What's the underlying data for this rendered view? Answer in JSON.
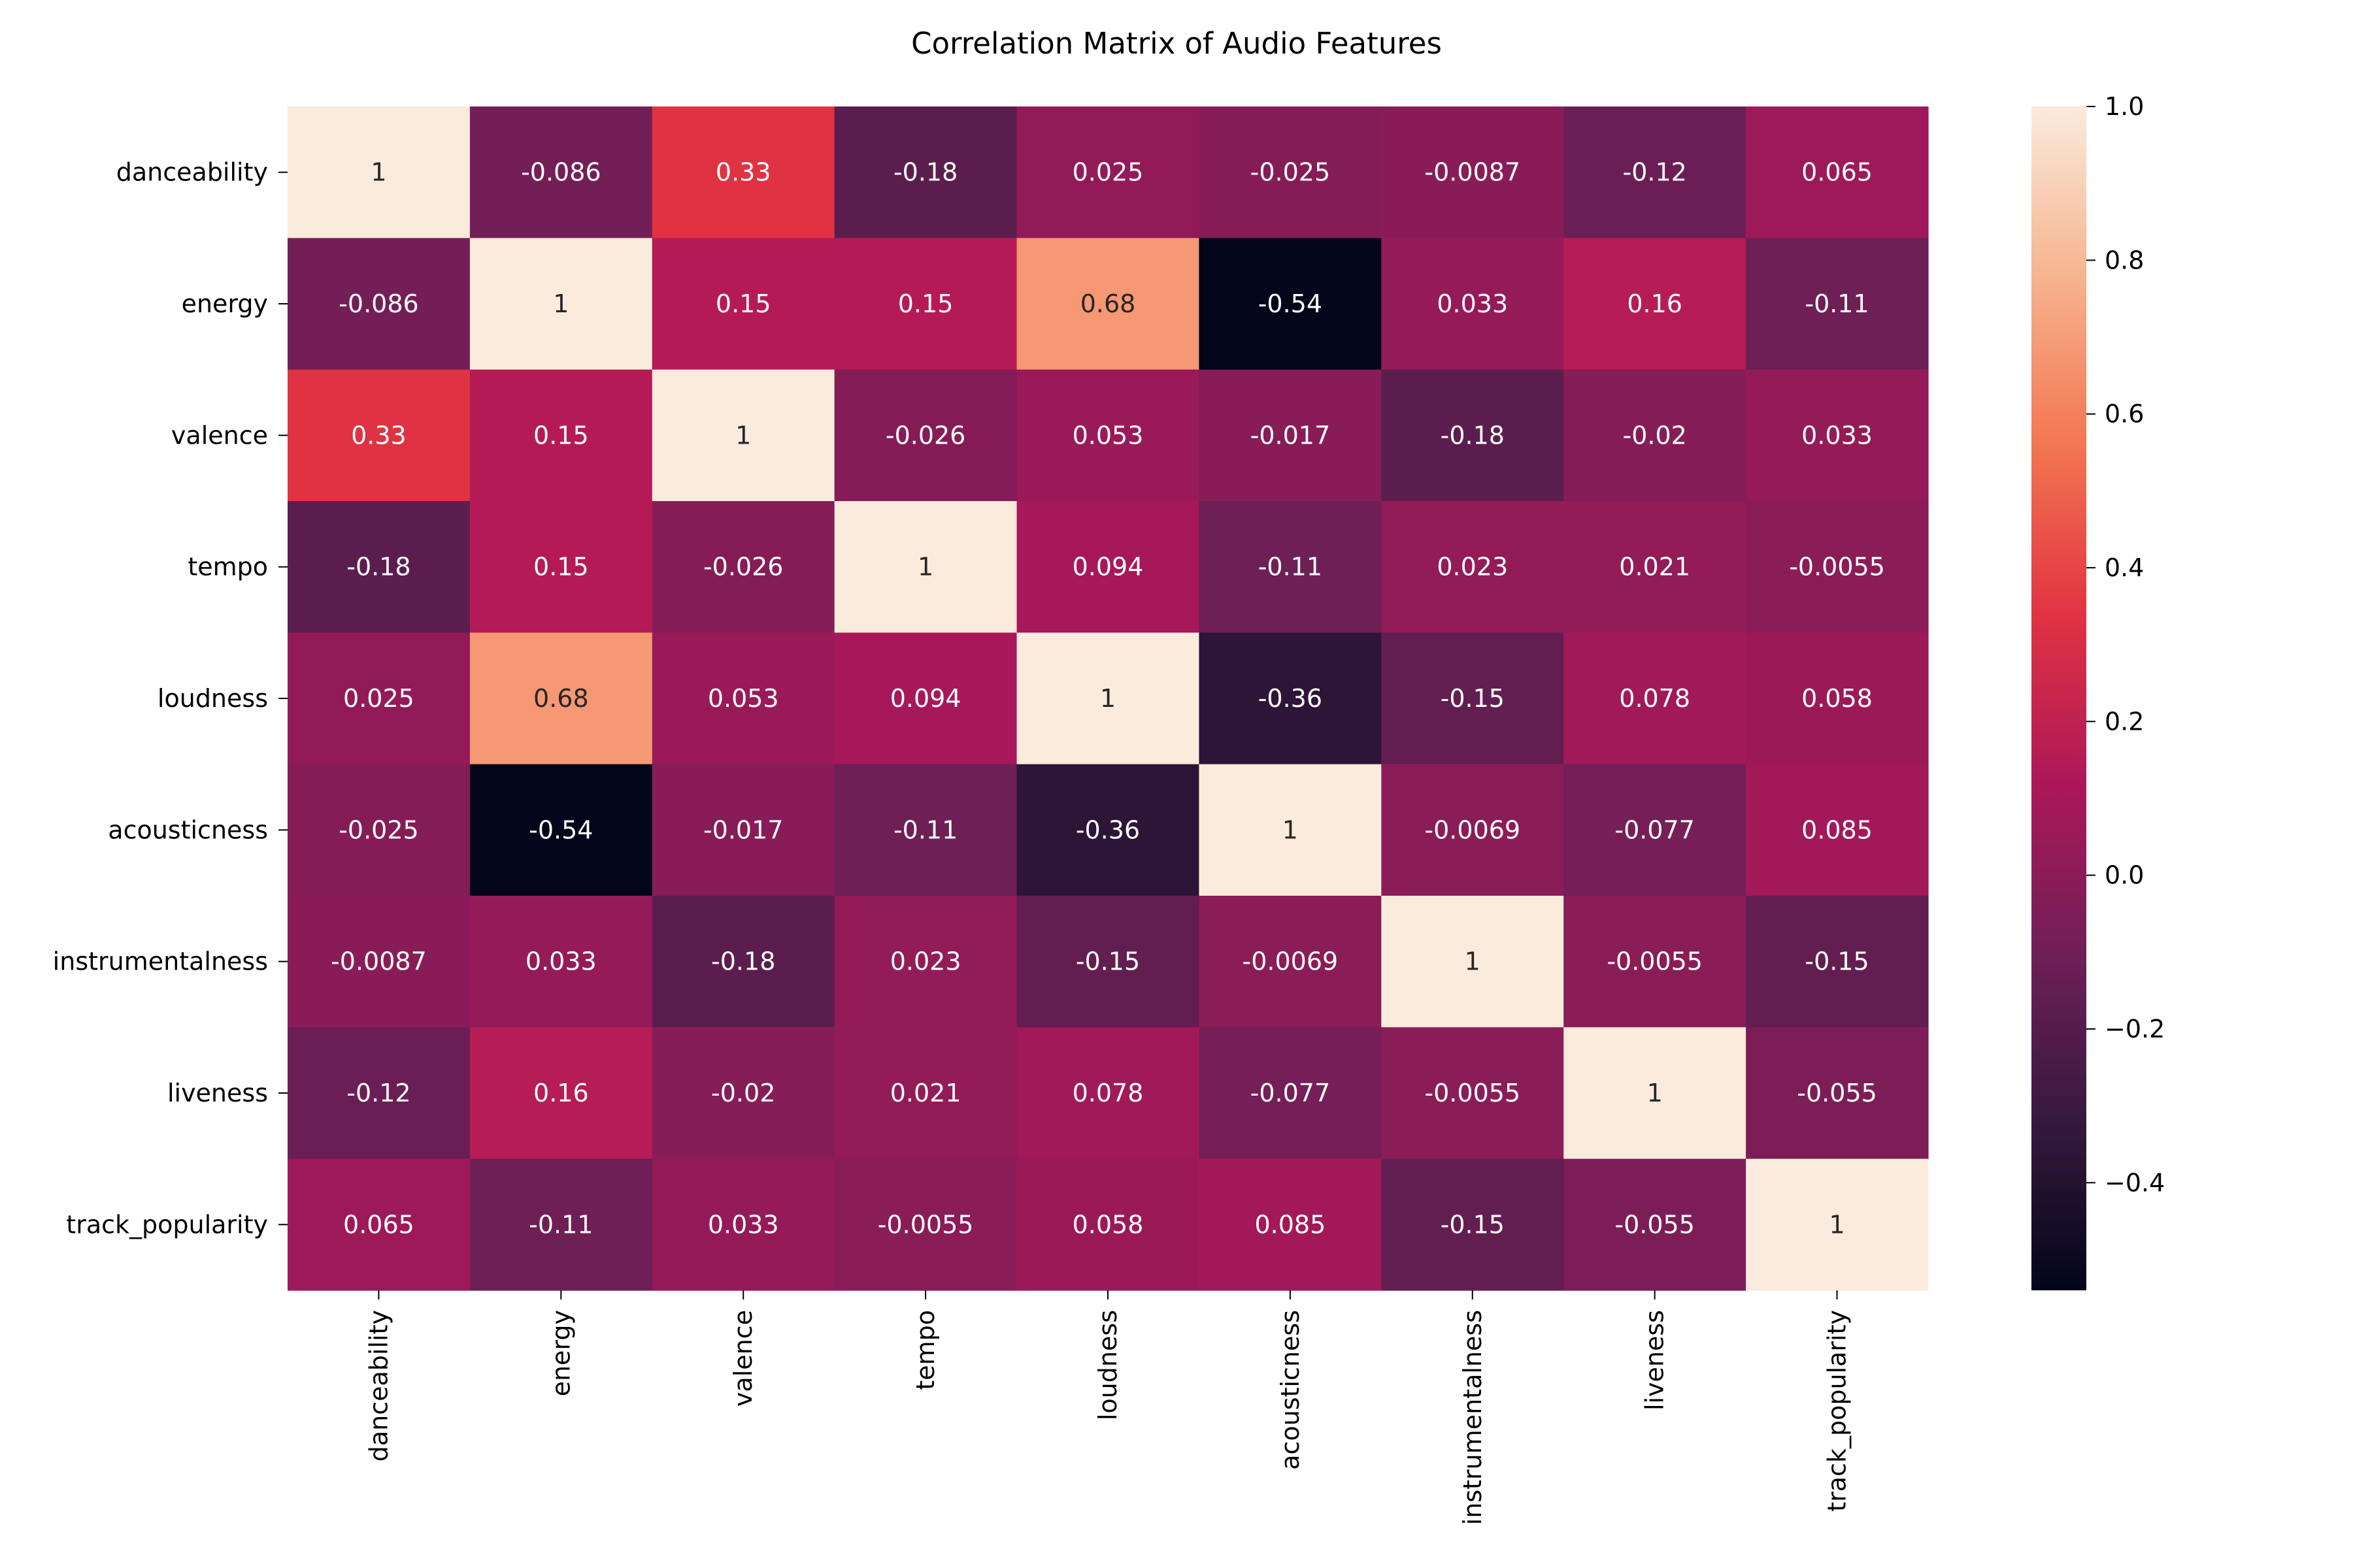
{
  "chart_data": {
    "type": "heatmap",
    "title": "Correlation Matrix of Audio Features",
    "row_labels": [
      "danceability",
      "energy",
      "valence",
      "tempo",
      "loudness",
      "acousticness",
      "instrumentalness",
      "liveness",
      "track_popularity"
    ],
    "col_labels": [
      "danceability",
      "energy",
      "valence",
      "tempo",
      "loudness",
      "acousticness",
      "instrumentalness",
      "liveness",
      "track_popularity"
    ],
    "values": [
      [
        1,
        -0.086,
        0.33,
        -0.18,
        0.025,
        -0.025,
        -0.0087,
        -0.12,
        0.065
      ],
      [
        -0.086,
        1,
        0.15,
        0.15,
        0.68,
        -0.54,
        0.033,
        0.16,
        -0.11
      ],
      [
        0.33,
        0.15,
        1,
        -0.026,
        0.053,
        -0.017,
        -0.18,
        -0.02,
        0.033
      ],
      [
        -0.18,
        0.15,
        -0.026,
        1,
        0.094,
        -0.11,
        0.023,
        0.021,
        -0.0055
      ],
      [
        0.025,
        0.68,
        0.053,
        0.094,
        1,
        -0.36,
        -0.15,
        0.078,
        0.058
      ],
      [
        -0.025,
        -0.54,
        -0.017,
        -0.11,
        -0.36,
        1,
        -0.0069,
        -0.077,
        0.085
      ],
      [
        -0.0087,
        0.033,
        -0.18,
        0.023,
        -0.15,
        -0.0069,
        1,
        -0.0055,
        -0.15
      ],
      [
        -0.12,
        0.16,
        -0.02,
        0.021,
        0.078,
        -0.077,
        -0.0055,
        1,
        -0.055
      ],
      [
        0.065,
        -0.11,
        0.033,
        -0.0055,
        0.058,
        0.085,
        -0.15,
        -0.055,
        1
      ]
    ],
    "value_labels": [
      [
        "1",
        "-0.086",
        "0.33",
        "-0.18",
        "0.025",
        "-0.025",
        "-0.0087",
        "-0.12",
        "0.065"
      ],
      [
        "-0.086",
        "1",
        "0.15",
        "0.15",
        "0.68",
        "-0.54",
        "0.033",
        "0.16",
        "-0.11"
      ],
      [
        "0.33",
        "0.15",
        "1",
        "-0.026",
        "0.053",
        "-0.017",
        "-0.18",
        "-0.02",
        "0.033"
      ],
      [
        "-0.18",
        "0.15",
        "-0.026",
        "1",
        "0.094",
        "-0.11",
        "0.023",
        "0.021",
        "-0.0055"
      ],
      [
        "0.025",
        "0.68",
        "0.053",
        "0.094",
        "1",
        "-0.36",
        "-0.15",
        "0.078",
        "0.058"
      ],
      [
        "-0.025",
        "-0.54",
        "-0.017",
        "-0.11",
        "-0.36",
        "1",
        "-0.0069",
        "-0.077",
        "0.085"
      ],
      [
        "-0.0087",
        "0.033",
        "-0.18",
        "0.023",
        "-0.15",
        "-0.0069",
        "1",
        "-0.0055",
        "-0.15"
      ],
      [
        "-0.12",
        "0.16",
        "-0.02",
        "0.021",
        "0.078",
        "-0.077",
        "-0.0055",
        "1",
        "-0.055"
      ],
      [
        "0.065",
        "-0.11",
        "0.033",
        "-0.0055",
        "0.058",
        "0.085",
        "-0.15",
        "-0.055",
        "1"
      ]
    ],
    "color_scale": {
      "name": "rocket",
      "vmin": -0.54,
      "vmax": 1.0,
      "stops": [
        "#03051a",
        "#36193e",
        "#701f57",
        "#ad1759",
        "#e13342",
        "#f37651",
        "#f6b48f",
        "#faebdd"
      ]
    },
    "colorbar": {
      "ticks": [
        -0.4,
        -0.2,
        0.0,
        0.2,
        0.4,
        0.6,
        0.8,
        1.0
      ],
      "tick_labels": [
        "−0.4",
        "−0.2",
        "0.0",
        "0.2",
        "0.4",
        "0.6",
        "0.8",
        "1.0"
      ],
      "placement": "right"
    },
    "label_colors": {
      "dark_background": "#ffffff",
      "light_background": "#262626"
    }
  }
}
